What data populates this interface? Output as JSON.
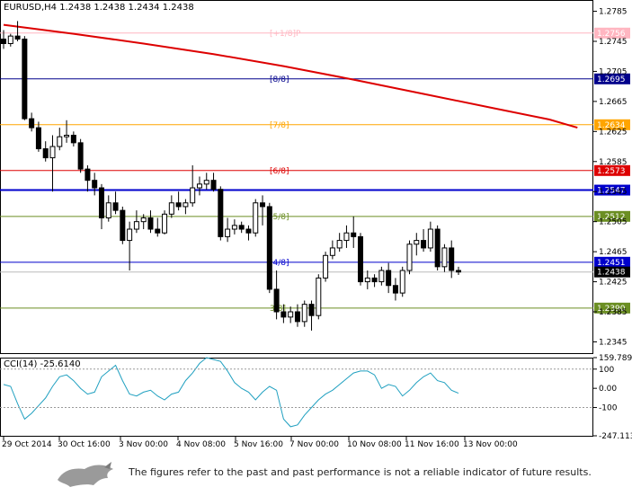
{
  "header": {
    "symbol_line": "EURUSD,H4  1.2438 1.2438 1.2434 1.2438"
  },
  "disclaimer": "The figures refer to the past and past performance is not a reliable indicator of future results.",
  "logo_icon": "bull-logo-icon",
  "chart_data": [
    {
      "type": "candlestick",
      "title": "EURUSD,H4",
      "ylim": [
        1.233,
        1.28
      ],
      "y_ticks": [
        "1.2785",
        "1.2745",
        "1.2705",
        "1.2665",
        "1.2625",
        "1.2585",
        "1.2545",
        "1.2505",
        "1.2465",
        "1.2425",
        "1.2385",
        "1.2345"
      ],
      "x_tick_labels": [
        "29 Oct 2014",
        "30 Oct 16:00",
        "3 Nov 00:00",
        "4 Nov 08:00",
        "5 Nov 16:00",
        "7 Nov 00:00",
        "10 Nov 08:00",
        "11 Nov 16:00",
        "13 Nov 00:00"
      ],
      "murray_levels": [
        {
          "label": "[+1/8]P",
          "value": 1.2756,
          "value_label": "1.2756",
          "color": "#ffb6c1"
        },
        {
          "label": "[8/8]",
          "value": 1.2695,
          "value_label": "1.2695",
          "color": "#00008b"
        },
        {
          "label": "[7/8]",
          "value": 1.2634,
          "value_label": "1.2634",
          "color": "#ffa500"
        },
        {
          "label": "[6/8]",
          "value": 1.2573,
          "value_label": "1.2573",
          "color": "#dd0000"
        },
        {
          "label": "",
          "value": 1.2547,
          "value_label": "1.2547",
          "color": "#0000cc"
        },
        {
          "label": "[5/8]",
          "value": 1.2512,
          "value_label": "1.2512",
          "color": "#6b8e23"
        },
        {
          "label": "[4/8]",
          "value": 1.2451,
          "value_label": "1.2451",
          "color": "#0000cc"
        },
        {
          "label": "3/8]",
          "value": 1.239,
          "value_label": "1.2390",
          "color": "#6b8e23"
        }
      ],
      "current_price": {
        "value": 1.2438,
        "label": "1.2438"
      },
      "ma_series": [
        [
          0,
          1.2767
        ],
        [
          10,
          1.2755
        ],
        [
          20,
          1.2742
        ],
        [
          30,
          1.2728
        ],
        [
          40,
          1.2712
        ],
        [
          50,
          1.2694
        ],
        [
          60,
          1.2675
        ],
        [
          70,
          1.2656
        ],
        [
          78,
          1.2641
        ],
        [
          82,
          1.263
        ]
      ],
      "candles": [
        [
          1.2748,
          1.276,
          1.2735,
          1.2742
        ],
        [
          1.2742,
          1.2755,
          1.2738,
          1.2752
        ],
        [
          1.2752,
          1.2772,
          1.2745,
          1.2748
        ],
        [
          1.2748,
          1.2752,
          1.264,
          1.2642
        ],
        [
          1.2642,
          1.265,
          1.2625,
          1.263
        ],
        [
          1.263,
          1.2638,
          1.2598,
          1.2602
        ],
        [
          1.2602,
          1.2612,
          1.2585,
          1.259
        ],
        [
          1.259,
          1.262,
          1.2545,
          1.2605
        ],
        [
          1.2605,
          1.263,
          1.26,
          1.2618
        ],
        [
          1.2618,
          1.264,
          1.261,
          1.262
        ],
        [
          1.262,
          1.2625,
          1.2605,
          1.261
        ],
        [
          1.261,
          1.2615,
          1.257,
          1.2575
        ],
        [
          1.2575,
          1.258,
          1.2545,
          1.256
        ],
        [
          1.256,
          1.257,
          1.254,
          1.255
        ],
        [
          1.255,
          1.2555,
          1.2495,
          1.251
        ],
        [
          1.251,
          1.254,
          1.2505,
          1.253
        ],
        [
          1.253,
          1.2545,
          1.2515,
          1.252
        ],
        [
          1.252,
          1.2525,
          1.2475,
          1.248
        ],
        [
          1.248,
          1.2505,
          1.244,
          1.2495
        ],
        [
          1.2495,
          1.252,
          1.249,
          1.2505
        ],
        [
          1.2505,
          1.2515,
          1.2495,
          1.251
        ],
        [
          1.251,
          1.252,
          1.249,
          1.2495
        ],
        [
          1.2495,
          1.251,
          1.2485,
          1.249
        ],
        [
          1.249,
          1.252,
          1.2488,
          1.2515
        ],
        [
          1.2515,
          1.254,
          1.251,
          1.253
        ],
        [
          1.253,
          1.2545,
          1.252,
          1.2525
        ],
        [
          1.2525,
          1.2535,
          1.2515,
          1.253
        ],
        [
          1.253,
          1.258,
          1.2525,
          1.255
        ],
        [
          1.255,
          1.2565,
          1.254,
          1.2555
        ],
        [
          1.2555,
          1.257,
          1.2548,
          1.256
        ],
        [
          1.256,
          1.257,
          1.2545,
          1.2548
        ],
        [
          1.2548,
          1.2552,
          1.248,
          1.2485
        ],
        [
          1.2485,
          1.251,
          1.2478,
          1.2495
        ],
        [
          1.2495,
          1.2508,
          1.2488,
          1.25
        ],
        [
          1.25,
          1.2505,
          1.249,
          1.2495
        ],
        [
          1.2495,
          1.25,
          1.248,
          1.249
        ],
        [
          1.249,
          1.2535,
          1.2485,
          1.253
        ],
        [
          1.253,
          1.254,
          1.25,
          1.2525
        ],
        [
          1.2525,
          1.253,
          1.241,
          1.2415
        ],
        [
          1.2415,
          1.244,
          1.2375,
          1.2385
        ],
        [
          1.2385,
          1.2395,
          1.237,
          1.2378
        ],
        [
          1.2378,
          1.2392,
          1.237,
          1.2385
        ],
        [
          1.2385,
          1.2395,
          1.2365,
          1.2372
        ],
        [
          1.2372,
          1.24,
          1.2365,
          1.2395
        ],
        [
          1.2395,
          1.24,
          1.236,
          1.238
        ],
        [
          1.238,
          1.2435,
          1.2375,
          1.243
        ],
        [
          1.243,
          1.2465,
          1.2425,
          1.246
        ],
        [
          1.246,
          1.248,
          1.2455,
          1.247
        ],
        [
          1.247,
          1.249,
          1.2465,
          1.248
        ],
        [
          1.248,
          1.25,
          1.247,
          1.249
        ],
        [
          1.249,
          1.2512,
          1.247,
          1.2485
        ],
        [
          1.2485,
          1.249,
          1.242,
          1.2425
        ],
        [
          1.2425,
          1.244,
          1.2415,
          1.243
        ],
        [
          1.243,
          1.2435,
          1.2418,
          1.2425
        ],
        [
          1.2425,
          1.2445,
          1.242,
          1.244
        ],
        [
          1.244,
          1.245,
          1.241,
          1.242
        ],
        [
          1.242,
          1.243,
          1.24,
          1.241
        ],
        [
          1.241,
          1.2445,
          1.2405,
          1.244
        ],
        [
          1.244,
          1.248,
          1.2435,
          1.2475
        ],
        [
          1.2475,
          1.249,
          1.246,
          1.248
        ],
        [
          1.248,
          1.2495,
          1.2465,
          1.247
        ],
        [
          1.247,
          1.2505,
          1.2465,
          1.2495
        ],
        [
          1.2495,
          1.25,
          1.244,
          1.2445
        ],
        [
          1.2445,
          1.2475,
          1.2438,
          1.247
        ],
        [
          1.247,
          1.248,
          1.243,
          1.244
        ],
        [
          1.244,
          1.2445,
          1.2434,
          1.2438
        ]
      ]
    },
    {
      "type": "line",
      "title": "CCI(14) -25.6140",
      "ylim": [
        -247.113,
        159.789
      ],
      "y_ticks": [
        "159.7891",
        "100",
        "0.00",
        "-100",
        "-247.113"
      ],
      "ref_lines": [
        100,
        -100
      ],
      "color": "#20a0c0",
      "values": [
        20,
        10,
        -80,
        -160,
        -130,
        -90,
        -50,
        10,
        60,
        70,
        40,
        0,
        -30,
        -20,
        60,
        90,
        120,
        40,
        -30,
        -40,
        -20,
        -10,
        -40,
        -60,
        -30,
        -20,
        40,
        80,
        130,
        160,
        150,
        140,
        90,
        30,
        0,
        -20,
        -60,
        -20,
        10,
        -10,
        -160,
        -200,
        -190,
        -140,
        -100,
        -60,
        -30,
        -10,
        20,
        50,
        80,
        90,
        90,
        70,
        0,
        20,
        10,
        -40,
        -10,
        30,
        60,
        80,
        40,
        30,
        -10,
        -25.6
      ]
    }
  ]
}
